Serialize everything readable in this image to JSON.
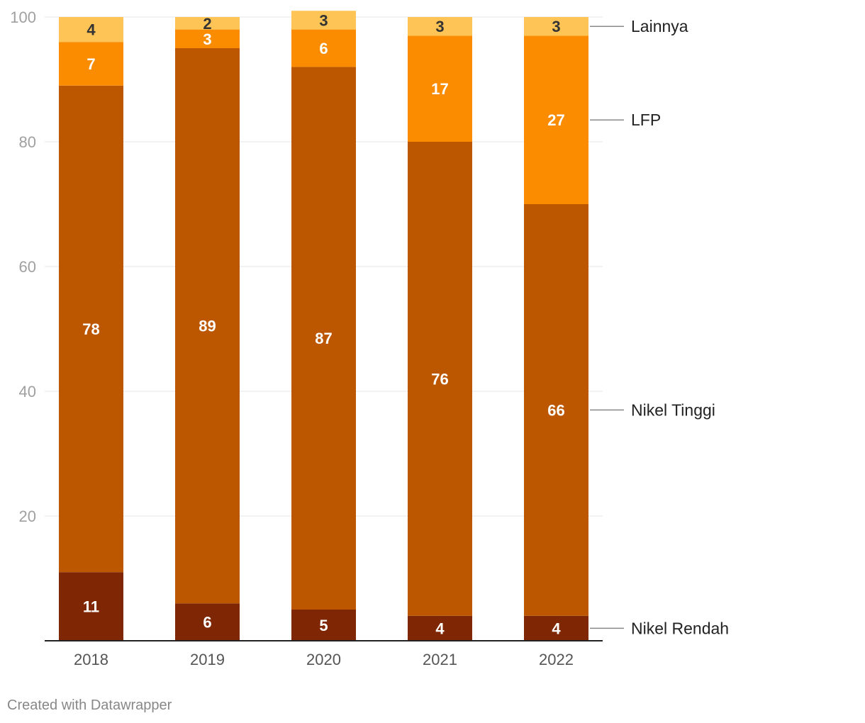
{
  "chart_data": {
    "type": "bar",
    "stacked": true,
    "categories": [
      "2018",
      "2019",
      "2020",
      "2021",
      "2022"
    ],
    "series": [
      {
        "name": "Nikel Rendah",
        "color": "#7f2704",
        "label_color": "light",
        "values": [
          11,
          6,
          5,
          4,
          4
        ]
      },
      {
        "name": "Nikel Tinggi",
        "color": "#bc5700",
        "label_color": "light",
        "values": [
          78,
          89,
          87,
          76,
          66
        ]
      },
      {
        "name": "LFP",
        "color": "#fb8c00",
        "label_color": "light",
        "values": [
          7,
          3,
          6,
          17,
          27
        ]
      },
      {
        "name": "Lainnya",
        "color": "#ffc456",
        "label_color": "dark",
        "values": [
          4,
          2,
          3,
          3,
          3
        ]
      }
    ],
    "yticks": [
      20,
      40,
      60,
      80,
      100
    ],
    "ylim": [
      0,
      100
    ],
    "grid": true,
    "legend_placement": "right, labels attached to last bar",
    "title": "",
    "xlabel": "",
    "ylabel": ""
  },
  "footer": {
    "credit": "Created with Datawrapper"
  }
}
